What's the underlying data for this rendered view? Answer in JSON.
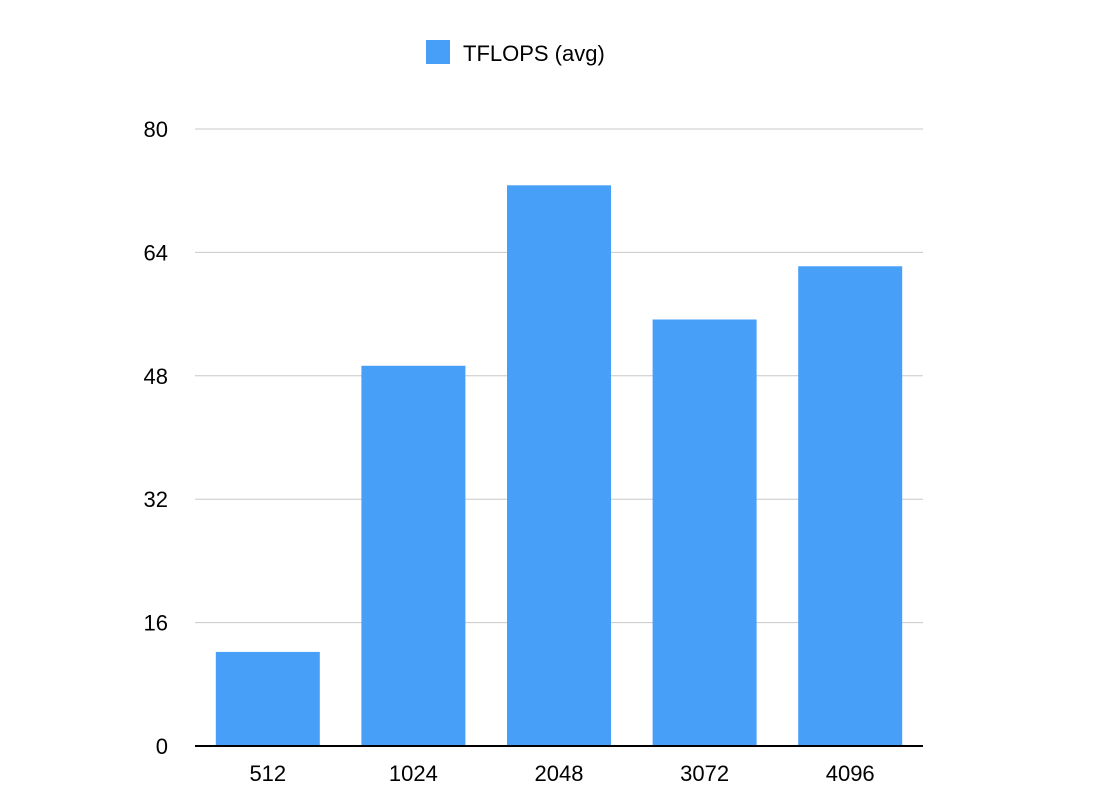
{
  "chart_data": {
    "type": "bar",
    "title": "",
    "xlabel": "",
    "ylabel": "",
    "categories": [
      "512",
      "1024",
      "2048",
      "3072",
      "4096"
    ],
    "series": [
      {
        "name": "TFLOPS (avg)",
        "values": [
          12.2,
          49.3,
          72.7,
          55.3,
          62.2
        ],
        "color": "#479ff8"
      }
    ],
    "ylim": [
      0,
      80
    ],
    "yticks": [
      0,
      16,
      32,
      48,
      64,
      80
    ],
    "grid": true,
    "legend": "top-center"
  }
}
